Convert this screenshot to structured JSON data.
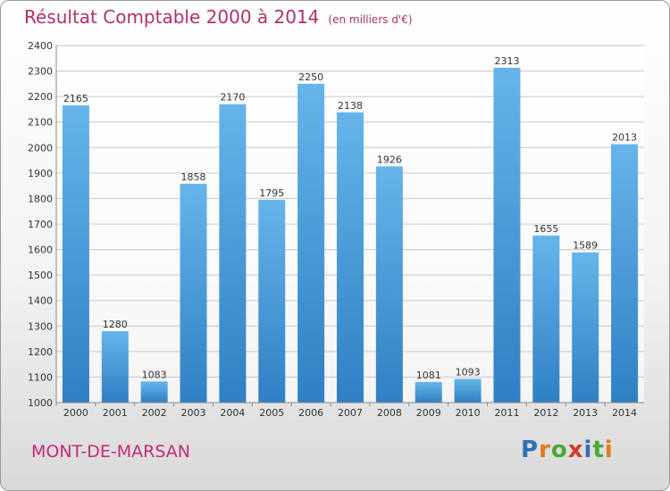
{
  "title": "Résultat Comptable 2000 à 2014",
  "subtitle": "(en milliers d'€)",
  "city": "MONT-DE-MARSAN",
  "logo": {
    "text": "Proxiti",
    "letters": [
      "P",
      "r",
      "o",
      "x",
      "i",
      "t",
      "i"
    ],
    "colors": [
      "#2f6fb6",
      "#e07b1a",
      "#4aa832",
      "#d23a2a",
      "#2f6fb6",
      "#4aa832",
      "#e07b1a"
    ]
  },
  "colors": {
    "bar_light": "#66b4ea",
    "bar_dark": "#2f80c4",
    "title": "#b0306a",
    "city": "#c8287a"
  },
  "chart_data": {
    "type": "bar",
    "title": "Résultat Comptable 2000 à 2014",
    "subtitle": "(en milliers d'€)",
    "categories": [
      "2000",
      "2001",
      "2002",
      "2003",
      "2004",
      "2005",
      "2006",
      "2007",
      "2008",
      "2009",
      "2010",
      "2011",
      "2012",
      "2013",
      "2014"
    ],
    "values": [
      2165,
      1280,
      1083,
      1858,
      2170,
      1795,
      2250,
      2138,
      1926,
      1081,
      1093,
      2313,
      1655,
      1589,
      2013
    ],
    "ylim": [
      1000,
      2400
    ],
    "yticks": [
      1000,
      1100,
      1200,
      1300,
      1400,
      1500,
      1600,
      1700,
      1800,
      1900,
      2000,
      2100,
      2200,
      2300,
      2400
    ],
    "grid": true,
    "data_labels": true
  }
}
